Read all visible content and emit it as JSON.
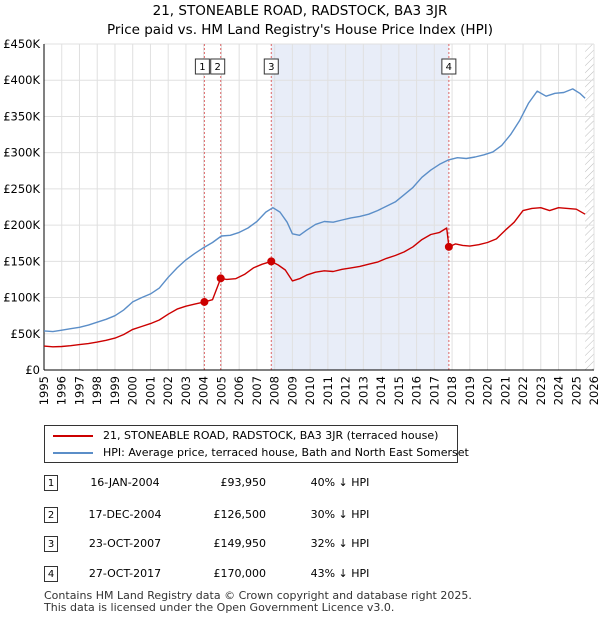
{
  "title_line1": "21, STONEABLE ROAD, RADSTOCK, BA3 3JR",
  "title_line2": "Price paid vs. HM Land Registry's House Price Index (HPI)",
  "colors": {
    "property": "#cc0000",
    "hpi": "#5b8ec8",
    "shade": "#e8edf8",
    "grid": "#e0e0e0"
  },
  "chart_data": {
    "type": "line",
    "title": "21, STONEABLE ROAD, RADSTOCK, BA3 3JR - Price paid vs. HM Land Registry's House Price Index (HPI)",
    "xlabel": "",
    "ylabel": "",
    "xlim": [
      1995,
      2026
    ],
    "ylim": [
      0,
      450000
    ],
    "x_ticks": [
      "1995",
      "1996",
      "1997",
      "1998",
      "1999",
      "2000",
      "2001",
      "2002",
      "2003",
      "2004",
      "2005",
      "2006",
      "2007",
      "2008",
      "2009",
      "2010",
      "2011",
      "2012",
      "2013",
      "2014",
      "2015",
      "2016",
      "2017",
      "2018",
      "2019",
      "2020",
      "2021",
      "2022",
      "2023",
      "2024",
      "2025",
      "2026"
    ],
    "y_ticks": [
      {
        "value": 0,
        "label": "£0"
      },
      {
        "value": 50000,
        "label": "£50K"
      },
      {
        "value": 100000,
        "label": "£100K"
      },
      {
        "value": 150000,
        "label": "£150K"
      },
      {
        "value": 200000,
        "label": "£200K"
      },
      {
        "value": 250000,
        "label": "£250K"
      },
      {
        "value": 300000,
        "label": "£300K"
      },
      {
        "value": 350000,
        "label": "£350K"
      },
      {
        "value": 400000,
        "label": "£400K"
      },
      {
        "value": 450000,
        "label": "£450K"
      }
    ],
    "shaded_range": [
      2007.81,
      2017.82
    ],
    "hatched_after": 2025.5,
    "series": [
      {
        "name": "21, STONEABLE ROAD, RADSTOCK, BA3 3JR (terraced house)",
        "color": "#cc0000",
        "points": [
          [
            1995,
            33000
          ],
          [
            1995.5,
            32000
          ],
          [
            1996,
            32500
          ],
          [
            1996.5,
            33500
          ],
          [
            1997,
            35000
          ],
          [
            1997.5,
            36500
          ],
          [
            1998,
            38500
          ],
          [
            1998.5,
            41000
          ],
          [
            1999,
            44000
          ],
          [
            1999.5,
            49000
          ],
          [
            2000,
            56000
          ],
          [
            2000.5,
            60000
          ],
          [
            2001,
            64000
          ],
          [
            2001.5,
            69000
          ],
          [
            2002,
            77000
          ],
          [
            2002.5,
            84000
          ],
          [
            2003,
            88000
          ],
          [
            2003.5,
            91000
          ],
          [
            2004.04,
            93950
          ],
          [
            2004.5,
            97000
          ],
          [
            2004.96,
            126500
          ],
          [
            2005.3,
            125000
          ],
          [
            2005.8,
            126000
          ],
          [
            2006.3,
            132000
          ],
          [
            2006.8,
            141000
          ],
          [
            2007.3,
            146000
          ],
          [
            2007.81,
            149950
          ],
          [
            2008.2,
            145000
          ],
          [
            2008.6,
            138000
          ],
          [
            2009,
            123000
          ],
          [
            2009.4,
            126000
          ],
          [
            2009.8,
            131000
          ],
          [
            2010.3,
            135000
          ],
          [
            2010.8,
            137000
          ],
          [
            2011.3,
            136000
          ],
          [
            2011.8,
            139000
          ],
          [
            2012.3,
            141000
          ],
          [
            2012.8,
            143000
          ],
          [
            2013.3,
            146000
          ],
          [
            2013.8,
            149000
          ],
          [
            2014.3,
            154000
          ],
          [
            2014.8,
            158000
          ],
          [
            2015.3,
            163000
          ],
          [
            2015.8,
            170000
          ],
          [
            2016.3,
            180000
          ],
          [
            2016.8,
            187000
          ],
          [
            2017.3,
            190000
          ],
          [
            2017.7,
            196000
          ],
          [
            2017.82,
            170000
          ],
          [
            2018.2,
            174000
          ],
          [
            2018.6,
            172000
          ],
          [
            2019,
            171000
          ],
          [
            2019.5,
            173000
          ],
          [
            2020,
            176000
          ],
          [
            2020.5,
            181000
          ],
          [
            2021,
            193000
          ],
          [
            2021.5,
            204000
          ],
          [
            2022,
            220000
          ],
          [
            2022.5,
            223000
          ],
          [
            2023,
            224000
          ],
          [
            2023.5,
            220000
          ],
          [
            2024,
            224000
          ],
          [
            2024.5,
            223000
          ],
          [
            2025,
            222000
          ],
          [
            2025.5,
            215000
          ]
        ]
      },
      {
        "name": "HPI: Average price, terraced house, Bath and North East Somerset",
        "color": "#5b8ec8",
        "points": [
          [
            1995,
            54000
          ],
          [
            1995.5,
            53000
          ],
          [
            1996,
            55000
          ],
          [
            1996.5,
            57000
          ],
          [
            1997,
            59000
          ],
          [
            1997.5,
            62000
          ],
          [
            1998,
            66000
          ],
          [
            1998.5,
            70000
          ],
          [
            1999,
            75000
          ],
          [
            1999.5,
            83000
          ],
          [
            2000,
            94000
          ],
          [
            2000.5,
            100000
          ],
          [
            2001,
            105000
          ],
          [
            2001.5,
            113000
          ],
          [
            2002,
            128000
          ],
          [
            2002.5,
            141000
          ],
          [
            2003,
            152000
          ],
          [
            2003.5,
            161000
          ],
          [
            2004,
            169000
          ],
          [
            2004.5,
            176000
          ],
          [
            2005,
            185000
          ],
          [
            2005.5,
            186000
          ],
          [
            2006,
            190000
          ],
          [
            2006.5,
            196000
          ],
          [
            2007,
            205000
          ],
          [
            2007.5,
            218000
          ],
          [
            2007.9,
            224000
          ],
          [
            2008.3,
            218000
          ],
          [
            2008.7,
            204000
          ],
          [
            2009,
            188000
          ],
          [
            2009.4,
            186000
          ],
          [
            2009.8,
            193000
          ],
          [
            2010.3,
            201000
          ],
          [
            2010.8,
            205000
          ],
          [
            2011.3,
            204000
          ],
          [
            2011.8,
            207000
          ],
          [
            2012.3,
            210000
          ],
          [
            2012.8,
            212000
          ],
          [
            2013.3,
            215000
          ],
          [
            2013.8,
            220000
          ],
          [
            2014.3,
            226000
          ],
          [
            2014.8,
            232000
          ],
          [
            2015.3,
            242000
          ],
          [
            2015.8,
            252000
          ],
          [
            2016.3,
            266000
          ],
          [
            2016.8,
            276000
          ],
          [
            2017.3,
            284000
          ],
          [
            2017.8,
            290000
          ],
          [
            2018.3,
            293000
          ],
          [
            2018.8,
            292000
          ],
          [
            2019.3,
            294000
          ],
          [
            2019.8,
            297000
          ],
          [
            2020.3,
            301000
          ],
          [
            2020.8,
            310000
          ],
          [
            2021.3,
            325000
          ],
          [
            2021.8,
            344000
          ],
          [
            2022.3,
            368000
          ],
          [
            2022.8,
            385000
          ],
          [
            2023.3,
            378000
          ],
          [
            2023.8,
            382000
          ],
          [
            2024.3,
            383000
          ],
          [
            2024.8,
            388000
          ],
          [
            2025.2,
            382000
          ],
          [
            2025.5,
            375000
          ]
        ]
      }
    ],
    "sales": [
      {
        "n": "1",
        "x": 2004.04,
        "price": 93950
      },
      {
        "n": "2",
        "x": 2004.96,
        "price": 126500
      },
      {
        "n": "3",
        "x": 2007.81,
        "price": 149950
      },
      {
        "n": "4",
        "x": 2017.82,
        "price": 170000
      }
    ]
  },
  "legend": [
    {
      "label": "21, STONEABLE ROAD, RADSTOCK, BA3 3JR (terraced house)"
    },
    {
      "label": "HPI: Average price, terraced house, Bath and North East Somerset"
    }
  ],
  "sales_table": [
    {
      "n": "1",
      "date": "16-JAN-2004",
      "price": "£93,950",
      "hpi": "40% ↓ HPI"
    },
    {
      "n": "2",
      "date": "17-DEC-2004",
      "price": "£126,500",
      "hpi": "30% ↓ HPI"
    },
    {
      "n": "3",
      "date": "23-OCT-2007",
      "price": "£149,950",
      "hpi": "32% ↓ HPI"
    },
    {
      "n": "4",
      "date": "27-OCT-2017",
      "price": "£170,000",
      "hpi": "43% ↓ HPI"
    }
  ],
  "footer_line1": "Contains HM Land Registry data © Crown copyright and database right 2025.",
  "footer_line2": "This data is licensed under the Open Government Licence v3.0."
}
